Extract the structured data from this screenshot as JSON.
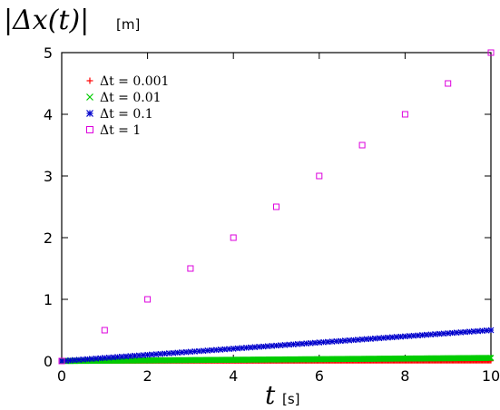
{
  "chart_data": {
    "type": "scatter",
    "ylabel": "|Δx(t)|",
    "ylabel_unit": "[m]",
    "xlabel": "t",
    "xlabel_unit": "[s]",
    "xlim": [
      0,
      10
    ],
    "ylim": [
      0,
      5
    ],
    "x_ticks": [
      "0",
      "2",
      "4",
      "6",
      "8",
      "10"
    ],
    "y_ticks": [
      "0",
      "1",
      "2",
      "3",
      "4",
      "5"
    ],
    "grid": false,
    "legend_position": "top-left",
    "series": [
      {
        "name": "Δt = 0.001",
        "marker": "plus",
        "color": "#ff0000",
        "dt": 0.001,
        "x": [
          0,
          10
        ],
        "y": [
          0,
          0.005
        ]
      },
      {
        "name": "Δt = 0.01",
        "marker": "cross",
        "color": "#00cc00",
        "dt": 0.01,
        "x": [
          0,
          10
        ],
        "y": [
          0,
          0.05
        ]
      },
      {
        "name": "Δt = 0.1",
        "marker": "star",
        "color": "#0000cc",
        "dt": 0.1,
        "x": [
          0,
          10
        ],
        "y": [
          0,
          0.5
        ]
      },
      {
        "name": "Δt = 1",
        "marker": "square",
        "color": "#dd00dd",
        "dt": 1,
        "x": [
          0,
          10
        ],
        "y": [
          0,
          5
        ]
      }
    ]
  }
}
